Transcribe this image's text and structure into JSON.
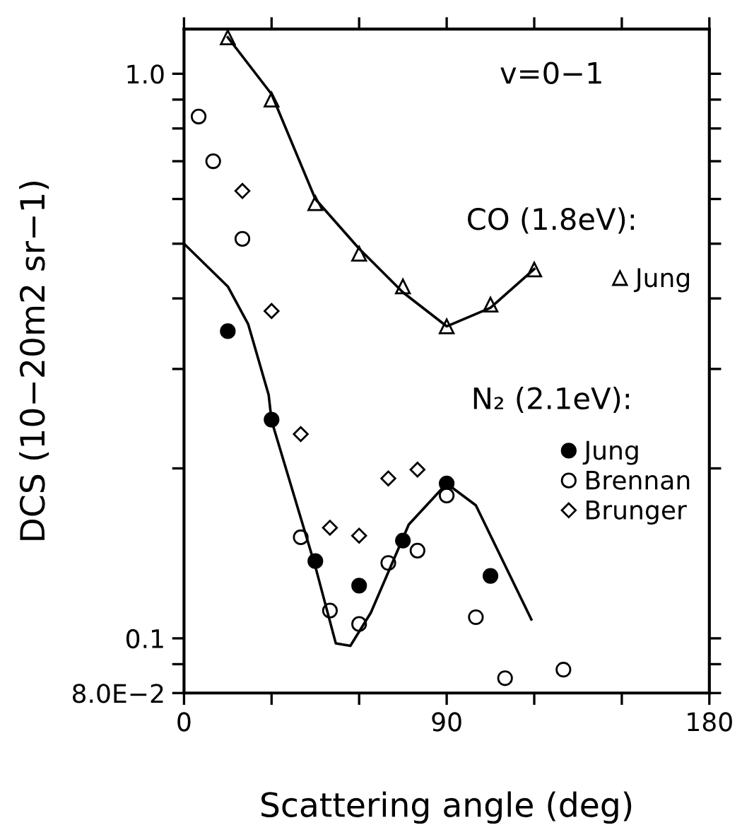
{
  "chart_data": {
    "type": "scatter",
    "xlabel": "Scattering angle (deg)",
    "ylabel": "DCS (10−20m2 sr−1)",
    "annotations": [
      "v=0−1",
      "CO (1.8eV):",
      "N₂ (2.1eV):"
    ],
    "log": "y",
    "xlim": [
      0,
      180
    ],
    "xticks": [
      0,
      {
        "value": 30,
        "label": null
      },
      {
        "value": 60,
        "label": null
      },
      90,
      {
        "value": 120,
        "label": null
      },
      {
        "value": 150,
        "label": null
      },
      180
    ],
    "ylim": [
      0.08,
      1.2
    ],
    "yticks": [
      {
        "value": 0.08,
        "label": "8.0E−2"
      },
      {
        "value": 0.09,
        "label": null
      },
      {
        "value": 0.1,
        "label": "0.1"
      },
      {
        "value": 0.2,
        "label": null
      },
      {
        "value": 0.3,
        "label": null
      },
      {
        "value": 0.4,
        "label": null
      },
      {
        "value": 0.5,
        "label": null
      },
      {
        "value": 0.6,
        "label": null
      },
      {
        "value": 0.7,
        "label": null
      },
      {
        "value": 0.8,
        "label": null
      },
      {
        "value": 0.9,
        "label": null
      },
      {
        "value": 1,
        "label": "1.0"
      }
    ],
    "grid": false,
    "legend": "right",
    "series": [
      {
        "name": "Jung",
        "marker": "triangle",
        "color": "#ffffff",
        "x": [
          15,
          30,
          45,
          60,
          75,
          90,
          105,
          120
        ],
        "values": [
          1.16,
          0.9,
          0.59,
          0.48,
          0.42,
          0.357,
          0.39,
          0.45
        ]
      },
      {
        "name": "Jung",
        "marker": "circle",
        "color": "#000000",
        "x": [
          15,
          30,
          45,
          60,
          75,
          90,
          105
        ],
        "values": [
          0.35,
          0.244,
          0.137,
          0.124,
          0.149,
          0.188,
          0.129
        ]
      },
      {
        "name": "Brennan",
        "marker": "circle",
        "color": "#ffffff",
        "x": [
          5,
          10,
          20,
          40,
          50,
          60,
          70,
          80,
          90,
          100,
          110,
          130
        ],
        "values": [
          0.84,
          0.7,
          0.51,
          0.151,
          0.112,
          0.106,
          0.136,
          0.143,
          0.179,
          0.109,
          0.085,
          0.088
        ]
      },
      {
        "name": "Brunger",
        "marker": "diamond",
        "color": "#ffffff",
        "x": [
          20,
          30,
          40,
          50,
          60,
          70,
          80
        ],
        "values": [
          0.62,
          0.38,
          0.23,
          0.157,
          0.152,
          0.192,
          0.199
        ]
      },
      {
        "type": "line",
        "marker": "none",
        "color": "#000000",
        "x": [
          15,
          30,
          45,
          60,
          75,
          90,
          105,
          120
        ],
        "values": [
          1.16,
          0.92,
          0.6,
          0.49,
          0.41,
          0.357,
          0.385,
          0.451
        ]
      },
      {
        "type": "line",
        "marker": "none",
        "color": "#000000",
        "x": [
          0,
          15,
          22,
          29,
          30,
          45,
          52,
          57,
          64,
          77,
          90,
          100,
          119
        ],
        "values": [
          0.5,
          0.42,
          0.36,
          0.27,
          0.243,
          0.134,
          0.098,
          0.097,
          0.111,
          0.159,
          0.188,
          0.172,
          0.108
        ]
      }
    ]
  }
}
